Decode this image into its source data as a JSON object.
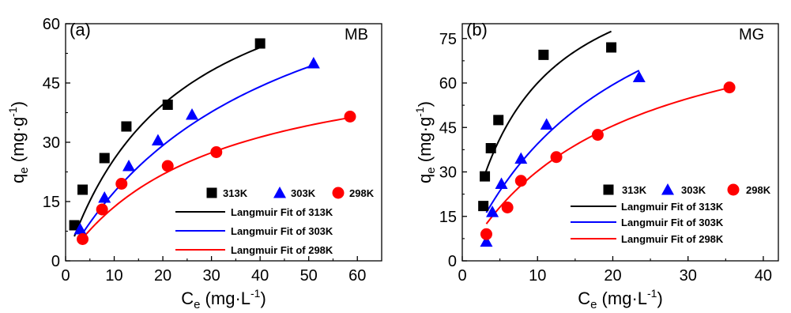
{
  "chart_data": [
    {
      "type": "scatter",
      "panel_label": "(a)",
      "dye_label": "MB",
      "xlabel": {
        "main": "C",
        "sub": "e",
        "unit": "(mg·L",
        "sup": "-1",
        "close": ")"
      },
      "ylabel": {
        "main": "q",
        "sub": "e",
        "unit": "(mg·g",
        "sup": "-1",
        "close": ")"
      },
      "xlim": [
        0,
        65
      ],
      "ylim": [
        0,
        60
      ],
      "xticks": [
        0,
        10,
        20,
        30,
        40,
        50,
        60
      ],
      "yticks": [
        0,
        15,
        30,
        45,
        60
      ],
      "xtick_labels": [
        "0",
        "10",
        "20",
        "30",
        "40",
        "50",
        "60"
      ],
      "ytick_labels": [
        "0",
        "15",
        "30",
        "45",
        "60"
      ],
      "legend_position": "bottom-right",
      "series": [
        {
          "name": "313K",
          "marker": "square",
          "color": "#000000",
          "x": [
            1.8,
            3.5,
            8.0,
            12.5,
            21.0,
            40.0
          ],
          "y": [
            9.0,
            18.0,
            26.0,
            34.0,
            39.5,
            55.0
          ]
        },
        {
          "name": "303K",
          "marker": "triangle",
          "color": "#0000ff",
          "x": [
            3.0,
            8.0,
            13.0,
            19.0,
            26.0,
            51.0
          ],
          "y": [
            8.0,
            16.0,
            24.0,
            30.5,
            37.0,
            50.0
          ]
        },
        {
          "name": "298K",
          "marker": "circle",
          "color": "#ff0000",
          "x": [
            3.5,
            7.5,
            11.5,
            21.0,
            31.0,
            58.5
          ],
          "y": [
            5.5,
            13.0,
            19.5,
            24.0,
            27.5,
            36.5
          ]
        }
      ],
      "fits": [
        {
          "name": "Langmuir Fit of 313K",
          "color": "#000000",
          "qm": 85,
          "KL": 0.0435,
          "x_range": [
            1.8,
            40.0
          ]
        },
        {
          "name": "Langmuir Fit of 303K",
          "color": "#0000ff",
          "qm": 90,
          "KL": 0.024,
          "x_range": [
            3.0,
            51.0
          ]
        },
        {
          "name": "Langmuir Fit of 298K",
          "color": "#ff0000",
          "qm": 55,
          "KL": 0.033,
          "x_range": [
            3.5,
            58.5
          ]
        }
      ]
    },
    {
      "type": "scatter",
      "panel_label": "(b)",
      "dye_label": "MG",
      "xlabel": {
        "main": "C",
        "sub": "e",
        "unit": "(mg·L",
        "sup": "-1",
        "close": ")"
      },
      "ylabel": {
        "main": "q",
        "sub": "e",
        "unit": "(mg·g",
        "sup": "-1",
        "close": ")"
      },
      "xlim": [
        0,
        42
      ],
      "ylim": [
        0,
        80
      ],
      "xticks": [
        0,
        10,
        20,
        30,
        40
      ],
      "yticks": [
        0,
        15,
        30,
        45,
        60,
        75
      ],
      "xtick_labels": [
        "0",
        "10",
        "20",
        "30",
        "40"
      ],
      "ytick_labels": [
        "0",
        "15",
        "30",
        "45",
        "60",
        "75"
      ],
      "legend_position": "bottom-right",
      "series": [
        {
          "name": "313K",
          "marker": "square",
          "color": "#000000",
          "x": [
            2.8,
            3.0,
            3.8,
            4.8,
            10.8,
            19.8
          ],
          "y": [
            18.5,
            28.5,
            38.0,
            47.5,
            69.5,
            72.0
          ]
        },
        {
          "name": "303K",
          "marker": "triangle",
          "color": "#0000ff",
          "x": [
            3.2,
            4.0,
            5.2,
            7.8,
            11.2,
            23.5
          ],
          "y": [
            6.5,
            16.5,
            26.0,
            34.5,
            46.0,
            62.0
          ]
        },
        {
          "name": "298K",
          "marker": "circle",
          "color": "#ff0000",
          "x": [
            3.2,
            6.0,
            7.8,
            12.5,
            18.0,
            35.5
          ],
          "y": [
            9.0,
            18.0,
            27.0,
            35.0,
            42.5,
            58.5
          ]
        }
      ],
      "fits": [
        {
          "name": "Langmuir Fit of 313K",
          "color": "#000000",
          "qm": 110,
          "KL": 0.12,
          "x_range": [
            2.8,
            19.8
          ]
        },
        {
          "name": "Langmuir Fit of 303K",
          "color": "#0000ff",
          "qm": 120,
          "KL": 0.049,
          "x_range": [
            3.2,
            23.5
          ]
        },
        {
          "name": "Langmuir Fit of 298K",
          "color": "#ff0000",
          "qm": 92,
          "KL": 0.049,
          "x_range": [
            3.2,
            35.5
          ]
        }
      ]
    }
  ]
}
